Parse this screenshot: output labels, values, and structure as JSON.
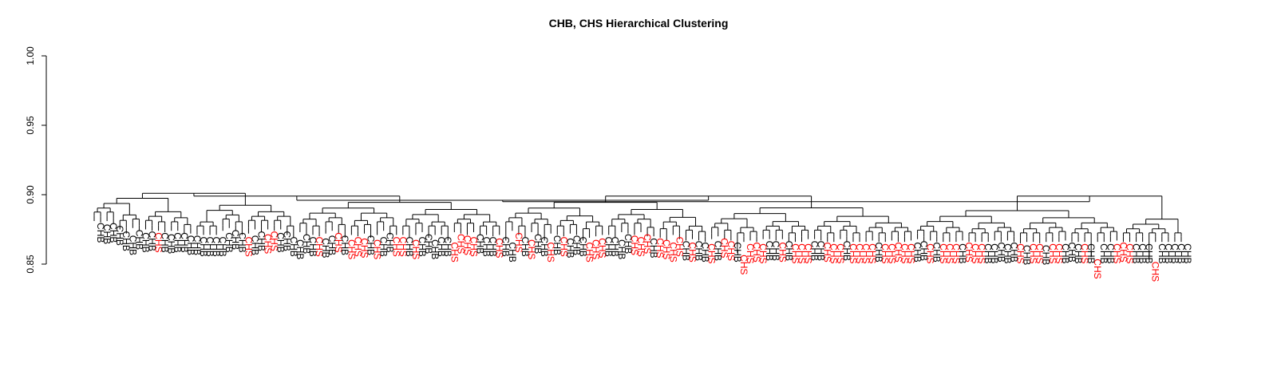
{
  "chart_data": {
    "type": "dendrogram",
    "title": "CHB, CHS Hierarchical Clustering",
    "xlabel": "",
    "ylabel": "",
    "ylim": [
      0.85,
      1.0
    ],
    "yticks": [
      0.85,
      0.9,
      0.95,
      1.0
    ],
    "ytick_labels": [
      "0.85",
      "0.90",
      "0.95",
      "1.00"
    ],
    "grid": false,
    "label_colors": {
      "CHB": "#000000",
      "CHS": "#ff0000"
    },
    "leaf_labels": [
      "CHB",
      "CHB",
      "CHB",
      "CHB",
      "CHB",
      "CHB",
      "CHB",
      "CHB",
      "CHB",
      "CHS",
      "CHB",
      "CHB",
      "CHB",
      "CHB",
      "CHB",
      "CHB",
      "CHB",
      "CHB",
      "CHB",
      "CHB",
      "CHB",
      "CHB",
      "CHB",
      "CHS",
      "CHB",
      "CHB",
      "CHS",
      "CHS",
      "CHB",
      "CHB",
      "CHB",
      "CHB",
      "CHB",
      "CHB",
      "CHS",
      "CHB",
      "CHB",
      "CHS",
      "CHB",
      "CHS",
      "CHS",
      "CHS",
      "CHB",
      "CHS",
      "CHB",
      "CHB",
      "CHS",
      "CHS",
      "CHB",
      "CHS",
      "CHB",
      "CHB",
      "CHB",
      "CHB",
      "CHB",
      "CHS",
      "CHS",
      "CHS",
      "CHS",
      "CHB",
      "CHB",
      "CHB",
      "CHS",
      "CHB",
      "CHB",
      "CHS",
      "CHB",
      "CHS",
      "CHB",
      "CHB",
      "CHS",
      "CHB",
      "CHS",
      "CHB",
      "CHB",
      "CHB",
      "CHS",
      "CHS",
      "CHS",
      "CHB",
      "CHB",
      "CHB",
      "CHB",
      "CHS",
      "CHS",
      "CHS",
      "CHB",
      "CHS",
      "CHS",
      "CHS",
      "CHS",
      "CHB",
      "CHS",
      "CHB",
      "CHB",
      "CHS",
      "CHB",
      "CHS",
      "CHS",
      "CHB",
      "CHS",
      "CHS",
      "CHS",
      "CHS",
      "CHB",
      "CHB",
      "CHS",
      "CHB",
      "CHS",
      "CHS",
      "CHS",
      "CHB",
      "CHB",
      "CHS",
      "CHS",
      "CHS",
      "CHB",
      "CHS",
      "CHS",
      "CHS",
      "CHS",
      "CHB",
      "CHS",
      "CHS",
      "CHS",
      "CHS",
      "CHS",
      "CHB",
      "CHB",
      "CHS",
      "CHB",
      "CHS",
      "CHS",
      "CHS",
      "CHB",
      "CHS",
      "CHS",
      "CHS",
      "CHB",
      "CHB",
      "CHB",
      "CHB",
      "CHB",
      "CHS",
      "CHB",
      "CHS",
      "CHS",
      "CHB",
      "CHS",
      "CHS",
      "CHB",
      "CHB",
      "CHB",
      "CHS",
      "CHB",
      "CHS",
      "CHB",
      "CHB",
      "CHS",
      "CHS",
      "CHS",
      "CHB",
      "CHB",
      "CHB",
      "CHS",
      "CHB",
      "CHB",
      "CHB",
      "CHB",
      "CHB"
    ],
    "leaf_heights": [
      0.881,
      0.88,
      0.881,
      0.879,
      0.875,
      0.872,
      0.876,
      0.874,
      0.875,
      0.874,
      0.874,
      0.873,
      0.874,
      0.874,
      0.872,
      0.872,
      0.871,
      0.871,
      0.871,
      0.871,
      0.874,
      0.876,
      0.874,
      0.871,
      0.872,
      0.875,
      0.873,
      0.875,
      0.874,
      0.875,
      0.871,
      0.869,
      0.873,
      0.871,
      0.871,
      0.87,
      0.872,
      0.874,
      0.872,
      0.869,
      0.871,
      0.87,
      0.872,
      0.869,
      0.871,
      0.874,
      0.871,
      0.871,
      0.871,
      0.869,
      0.871,
      0.873,
      0.869,
      0.871,
      0.871,
      0.867,
      0.873,
      0.872,
      0.871,
      0.873,
      0.871,
      0.871,
      0.87,
      0.871,
      0.867,
      0.874,
      0.871,
      0.869,
      0.873,
      0.871,
      0.867,
      0.872,
      0.871,
      0.87,
      0.872,
      0.871,
      0.867,
      0.869,
      0.87,
      0.871,
      0.871,
      0.869,
      0.873,
      0.872,
      0.871,
      0.873,
      0.87,
      0.87,
      0.869,
      0.867,
      0.871,
      0.868,
      0.867,
      0.868,
      0.867,
      0.866,
      0.868,
      0.87,
      0.868,
      0.867,
      0.858,
      0.866,
      0.867,
      0.866,
      0.868,
      0.868,
      0.867,
      0.868,
      0.866,
      0.866,
      0.866,
      0.868,
      0.868,
      0.867,
      0.866,
      0.866,
      0.868,
      0.866,
      0.866,
      0.866,
      0.866,
      0.867,
      0.866,
      0.866,
      0.867,
      0.866,
      0.866,
      0.867,
      0.868,
      0.866,
      0.867,
      0.866,
      0.866,
      0.866,
      0.866,
      0.867,
      0.866,
      0.866,
      0.866,
      0.866,
      0.867,
      0.866,
      0.867,
      0.866,
      0.865,
      0.866,
      0.866,
      0.865,
      0.866,
      0.866,
      0.866,
      0.867,
      0.866,
      0.866,
      0.866,
      0.855,
      0.866,
      0.866,
      0.866,
      0.867,
      0.866,
      0.866,
      0.866,
      0.866,
      0.853,
      0.866,
      0.866,
      0.866,
      0.866,
      0.866
    ],
    "merge_heights_top": [
      0.901,
      0.9,
      0.899,
      0.898,
      0.897,
      0.896,
      0.895
    ]
  }
}
